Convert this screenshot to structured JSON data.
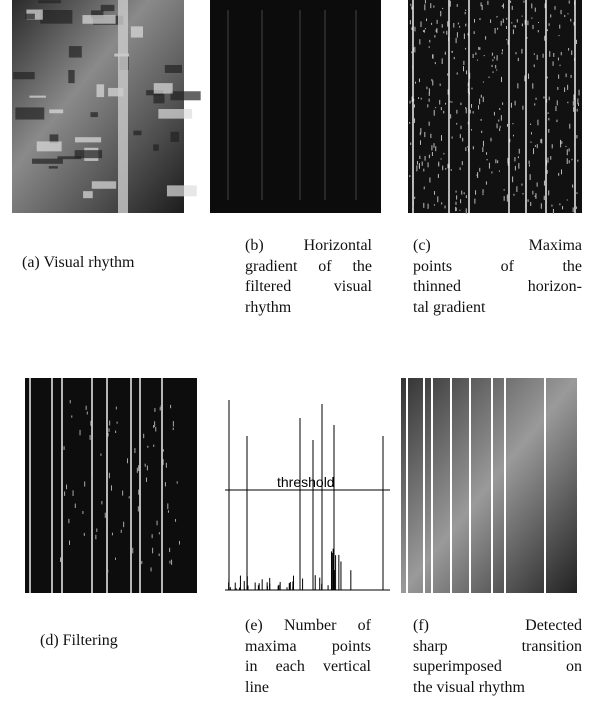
{
  "figure": {
    "panels": [
      {
        "caption": [
          "(a) Visual rhythm"
        ]
      },
      {
        "caption": [
          "(b) Horizontal",
          "gradient of the",
          "filtered visual",
          "rhythm"
        ]
      },
      {
        "caption": [
          "(c) Maxima",
          "points of the",
          "thinned horizon-",
          "tal gradient"
        ]
      },
      {
        "caption": [
          "(d) Filtering"
        ]
      },
      {
        "caption": [
          "(e) Number of",
          "maxima points",
          "in each vertical",
          "line"
        ]
      },
      {
        "caption": [
          "(f) Detected",
          "sharp transition",
          "superimposed on",
          "the visual rhythm"
        ]
      }
    ],
    "threshold_label": "threshold"
  }
}
